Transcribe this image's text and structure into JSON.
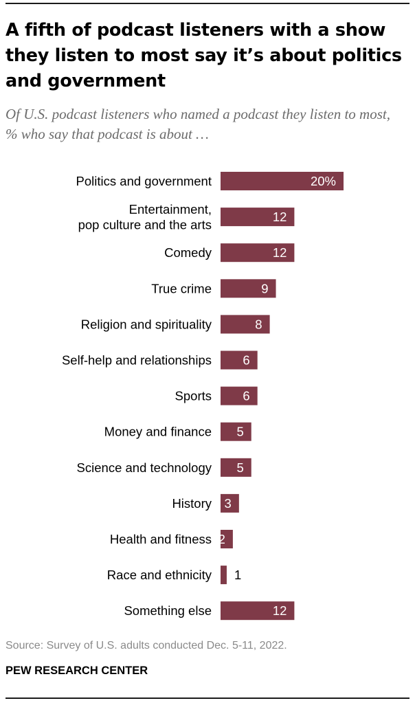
{
  "title": "A fifth of podcast listeners with a show they listen to most say it’s about politics and government",
  "subtitle": "Of U.S. podcast listeners who named a podcast they listen to most, % who say that podcast is about …",
  "source": "Source: Survey of U.S. adults conducted Dec. 5-11, 2022.",
  "brand": "PEW RESEARCH CENTER",
  "colors": {
    "bar": "#7f3a48",
    "label_inside": "#ffffff",
    "label_outside": "#000000"
  },
  "chart_data": {
    "type": "bar",
    "orientation": "horizontal",
    "title": "A fifth of podcast listeners with a show they listen to most say it’s about politics and government",
    "xlabel": "",
    "ylabel": "",
    "xlim": [
      0,
      20
    ],
    "grid": false,
    "categories": [
      [
        "Politics and government"
      ],
      [
        "Entertainment,",
        "pop culture and the arts"
      ],
      [
        "Comedy"
      ],
      [
        "True crime"
      ],
      [
        "Religion and spirituality"
      ],
      [
        "Self-help and relationships"
      ],
      [
        "Sports"
      ],
      [
        "Money and finance"
      ],
      [
        "Science and technology"
      ],
      [
        "History"
      ],
      [
        "Health and fitness"
      ],
      [
        "Race and ethnicity"
      ],
      [
        "Something else"
      ]
    ],
    "values": [
      20,
      12,
      12,
      9,
      8,
      6,
      6,
      5,
      5,
      3,
      2,
      1,
      12
    ],
    "value_labels": [
      "20%",
      "12",
      "12",
      "9",
      "8",
      "6",
      "6",
      "5",
      "5",
      "3",
      "2",
      "1",
      "12"
    ]
  }
}
